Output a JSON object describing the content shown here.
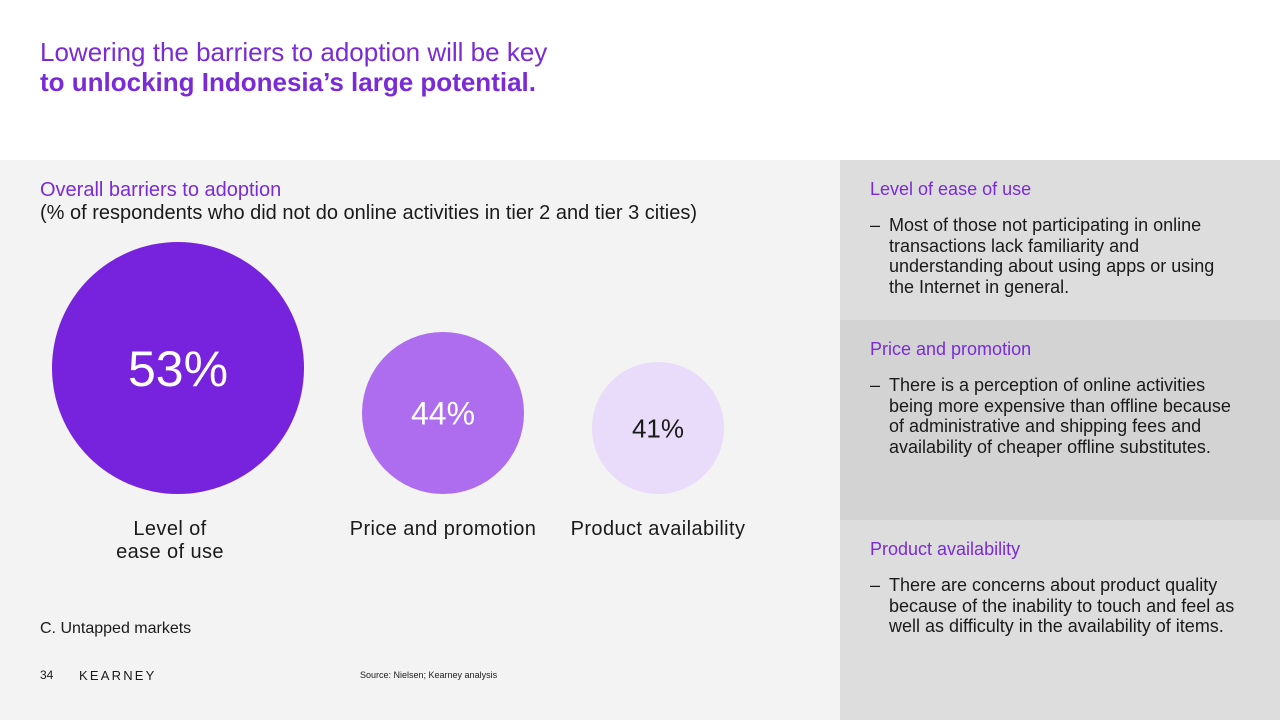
{
  "header": {
    "title_line1": "Lowering the barriers to adoption will be key",
    "title_line2": "to unlocking Indonesia’s large potential."
  },
  "chart_data": {
    "type": "bubble",
    "title": "Overall barriers to adoption",
    "subtitle": "(% of respondents who did not do online activities in tier 2 and tier 3 cities)",
    "unit": "%",
    "categories": [
      {
        "label_lines": [
          "Level of",
          "ease of use"
        ],
        "value": 53,
        "color": "#7722dd",
        "text_color": "#ffffff"
      },
      {
        "label_lines": [
          "Price and promotion"
        ],
        "value": 44,
        "color": "#ae6cee",
        "text_color": "#ffffff"
      },
      {
        "label_lines": [
          "Product availability"
        ],
        "value": 41,
        "color": "#e9dbfa",
        "text_color": "#1a1a1a"
      }
    ]
  },
  "footer": {
    "section": "C. Untapped markets",
    "page_number": "34",
    "brand": "KEARNEY",
    "source": "Source: Nielsen; Kearney analysis"
  },
  "side_panels": [
    {
      "heading": "Level of ease of use",
      "bullet": "Most of those not participating in online transactions lack familiarity and understanding about using apps or using the Internet in general."
    },
    {
      "heading": "Price and promotion",
      "bullet": "There is a perception of online activities being more expensive than offline because of administrative and shipping fees and availability of cheaper offline substitutes."
    },
    {
      "heading": "Product availability",
      "bullet": "There are concerns about product quality because of the inability to touch and feel as well as difficulty in the availability of items."
    }
  ],
  "colors": {
    "accent": "#7a2bd6",
    "panel_bg": "#f3f3f3",
    "side_bg": "#dddddd",
    "side_bg_alt": "#d3d3d3"
  },
  "bullet_marker": "–"
}
